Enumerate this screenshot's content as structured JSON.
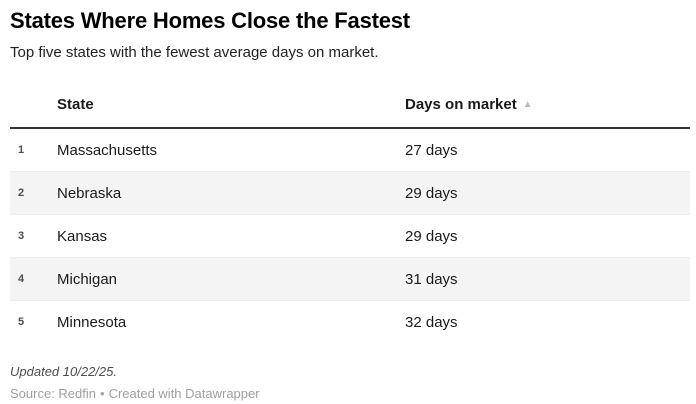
{
  "header": {
    "title": "States Where Homes Close the Fastest",
    "subtitle": "Top five states with the fewest average days on market."
  },
  "table": {
    "columns": [
      "State",
      "Days on market"
    ],
    "sort_arrow": "▲",
    "rows": [
      {
        "rank": "1",
        "state": "Massachusetts",
        "days": "27 days"
      },
      {
        "rank": "2",
        "state": "Nebraska",
        "days": "29 days"
      },
      {
        "rank": "3",
        "state": "Kansas",
        "days": "29 days"
      },
      {
        "rank": "4",
        "state": "Michigan",
        "days": "31 days"
      },
      {
        "rank": "5",
        "state": "Minnesota",
        "days": "32 days"
      }
    ]
  },
  "footer": {
    "updated": "Updated 10/22/25.",
    "source": "Source: Redfin",
    "separator": "•",
    "attribution": "Created with Datawrapper"
  },
  "colors": {
    "stripe": "#f4f4f4",
    "header_border": "#333333",
    "sort_arrow": "#bbbbbb",
    "source_text": "#9e9e9e"
  },
  "chart_data": {
    "type": "table",
    "title": "States Where Homes Close the Fastest",
    "subtitle": "Top five states with the fewest average days on market.",
    "columns": [
      "State",
      "Days on market"
    ],
    "rows": [
      [
        "Massachusetts",
        27
      ],
      [
        "Nebraska",
        29
      ],
      [
        "Kansas",
        29
      ],
      [
        "Michigan",
        31
      ],
      [
        "Minnesota",
        32
      ]
    ],
    "sort": {
      "column": "Days on market",
      "direction": "ascending"
    },
    "notes": "Updated 10/22/25.",
    "source": "Redfin",
    "attribution": "Created with Datawrapper"
  }
}
